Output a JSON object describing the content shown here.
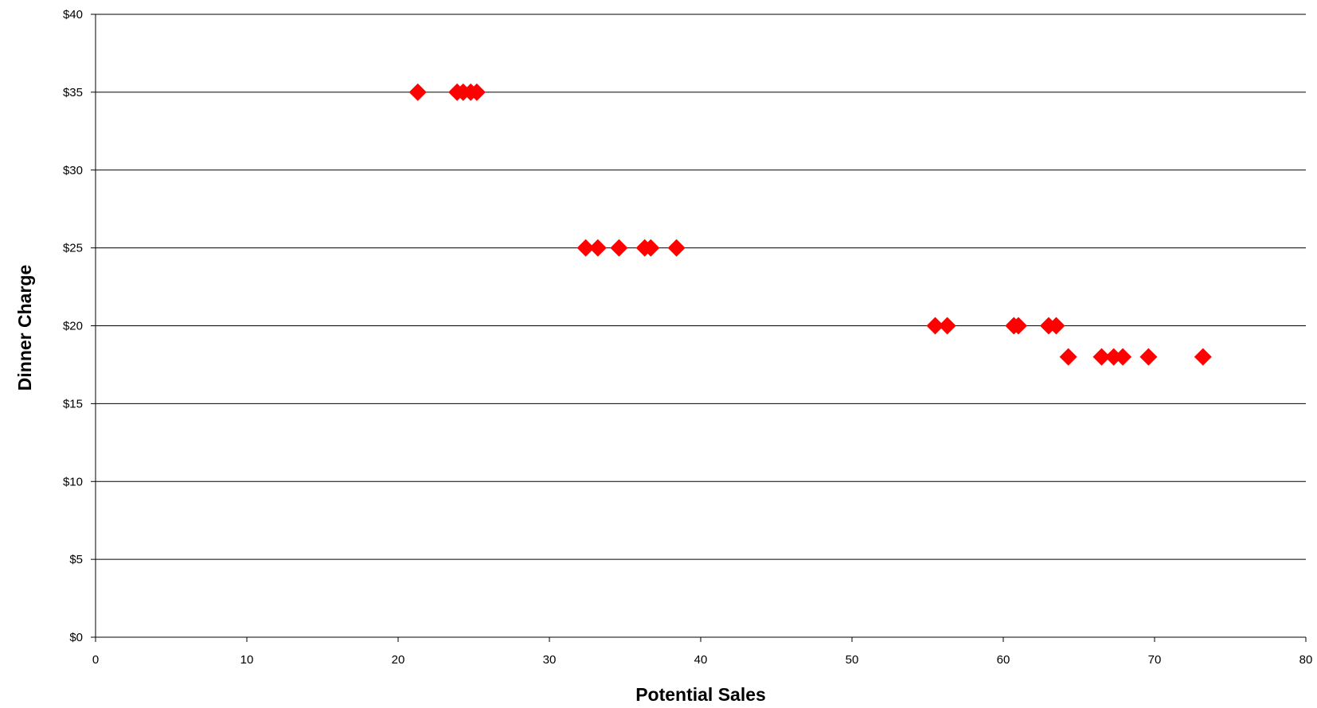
{
  "chart_data": {
    "type": "scatter",
    "title": "",
    "xlabel": "Potential Sales",
    "ylabel": "Dinner Charge",
    "xlim": [
      0,
      80
    ],
    "ylim": [
      0,
      40
    ],
    "x_ticks": [
      0,
      10,
      20,
      30,
      40,
      50,
      60,
      70,
      80
    ],
    "y_ticks": [
      0,
      5,
      10,
      15,
      20,
      25,
      30,
      35,
      40
    ],
    "x_tick_labels": [
      "0",
      "10",
      "20",
      "30",
      "40",
      "50",
      "60",
      "70",
      "80"
    ],
    "y_tick_labels": [
      "$0",
      "$5",
      "$10",
      "$15",
      "$20",
      "$25",
      "$30",
      "$35",
      "$40"
    ],
    "grid": "horizontal",
    "legend": "none",
    "marker": "diamond",
    "marker_color": "#ff0000",
    "series": [
      {
        "points": [
          {
            "x": 21.3,
            "y": 35
          },
          {
            "x": 23.9,
            "y": 35
          },
          {
            "x": 24.3,
            "y": 35
          },
          {
            "x": 24.8,
            "y": 35
          },
          {
            "x": 25.2,
            "y": 35
          },
          {
            "x": 32.4,
            "y": 25
          },
          {
            "x": 33.2,
            "y": 25
          },
          {
            "x": 34.6,
            "y": 25
          },
          {
            "x": 36.3,
            "y": 25
          },
          {
            "x": 36.7,
            "y": 25
          },
          {
            "x": 38.4,
            "y": 25
          },
          {
            "x": 55.5,
            "y": 20
          },
          {
            "x": 56.3,
            "y": 20
          },
          {
            "x": 60.7,
            "y": 20
          },
          {
            "x": 61.0,
            "y": 20
          },
          {
            "x": 63.0,
            "y": 20
          },
          {
            "x": 63.5,
            "y": 20
          },
          {
            "x": 64.3,
            "y": 18
          },
          {
            "x": 66.5,
            "y": 18
          },
          {
            "x": 67.3,
            "y": 18
          },
          {
            "x": 67.9,
            "y": 18
          },
          {
            "x": 69.6,
            "y": 18
          },
          {
            "x": 73.2,
            "y": 18
          }
        ]
      }
    ]
  }
}
